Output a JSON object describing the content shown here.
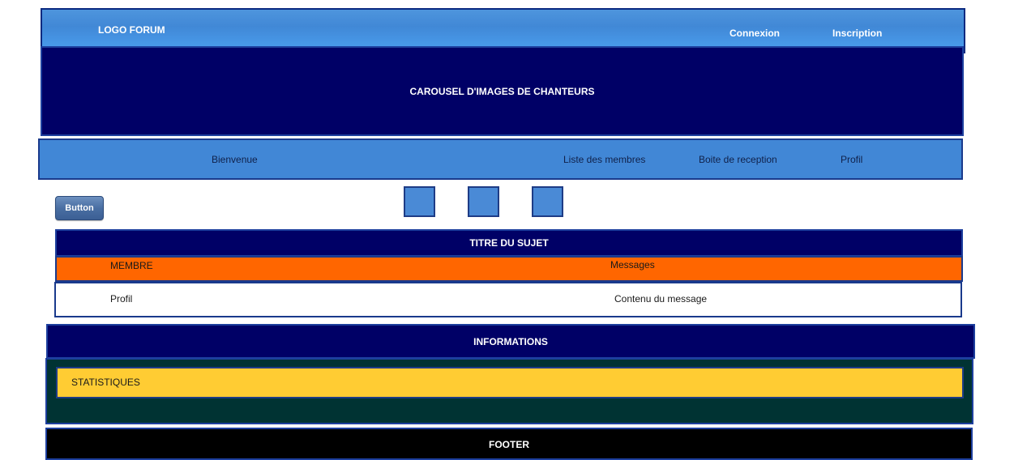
{
  "header": {
    "logo": "LOGO FORUM",
    "links": {
      "connexion": "Connexion",
      "inscription": "Inscription"
    }
  },
  "carousel": {
    "label": "CAROUSEL D'IMAGES DE CHANTEURS"
  },
  "menu": {
    "items": [
      "Bienvenue",
      "Liste des membres",
      "Boite de reception",
      "Profil"
    ]
  },
  "toolbar": {
    "button_label": "Button"
  },
  "topic": {
    "title": "TITRE DU SUJET",
    "columns": [
      "MEMBRE",
      "Messages"
    ],
    "row": {
      "author": "Profil",
      "content": "Contenu du message"
    }
  },
  "informations": {
    "title": "INFORMATIONS",
    "stats_label": "STATISTIQUES"
  },
  "footer": {
    "label": "FOOTER"
  },
  "colors": {
    "header_blue": "#4188d6",
    "navy": "#000066",
    "orange": "#ff6600",
    "yellow": "#ffcc33",
    "dark_teal": "#003333",
    "footer_black": "#000000"
  }
}
